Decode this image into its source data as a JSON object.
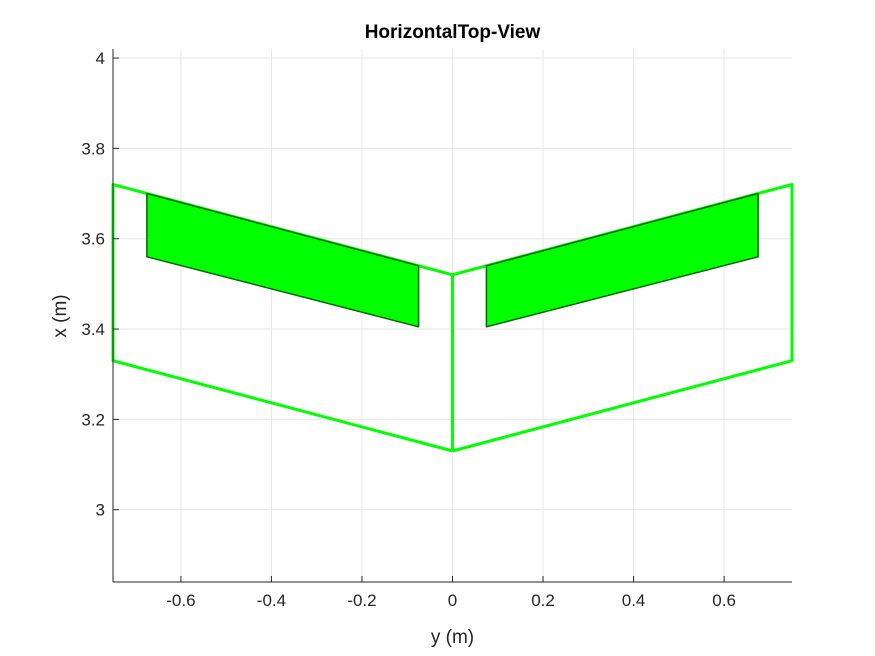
{
  "chart_data": {
    "type": "line",
    "title": "HorizontalTop-View",
    "xlabel": "y (m)",
    "ylabel": "x (m)",
    "xlim": [
      -0.75,
      0.75
    ],
    "ylim": [
      2.84,
      4.02
    ],
    "xticks": [
      -0.6,
      -0.4,
      -0.2,
      0,
      0.2,
      0.4,
      0.6
    ],
    "xtick_labels": [
      "-0.6",
      "-0.4",
      "-0.2",
      "0",
      "0.2",
      "0.4",
      "0.6"
    ],
    "yticks": [
      3,
      3.2,
      3.4,
      3.6,
      3.8,
      4
    ],
    "ytick_labels": [
      "3",
      "3.2",
      "3.4",
      "3.6",
      "3.8",
      "4"
    ],
    "grid": true,
    "line_color": "#00ff00",
    "fill_color": "#00ff00",
    "fill_edge_color": "#006600",
    "series": [
      {
        "kind": "outline",
        "points": [
          [
            0,
            3.13
          ],
          [
            -0.75,
            3.33
          ],
          [
            -0.75,
            3.72
          ],
          [
            0,
            3.52
          ],
          [
            0,
            3.13
          ]
        ]
      },
      {
        "kind": "outline",
        "points": [
          [
            0,
            3.13
          ],
          [
            0.75,
            3.33
          ],
          [
            0.75,
            3.72
          ],
          [
            0,
            3.52
          ],
          [
            0,
            3.13
          ]
        ]
      },
      {
        "kind": "filled",
        "points": [
          [
            -0.675,
            3.7
          ],
          [
            -0.075,
            3.54
          ],
          [
            -0.075,
            3.405
          ],
          [
            -0.675,
            3.56
          ]
        ]
      },
      {
        "kind": "filled",
        "points": [
          [
            0.075,
            3.54
          ],
          [
            0.675,
            3.7
          ],
          [
            0.675,
            3.56
          ],
          [
            0.075,
            3.405
          ]
        ]
      }
    ]
  }
}
